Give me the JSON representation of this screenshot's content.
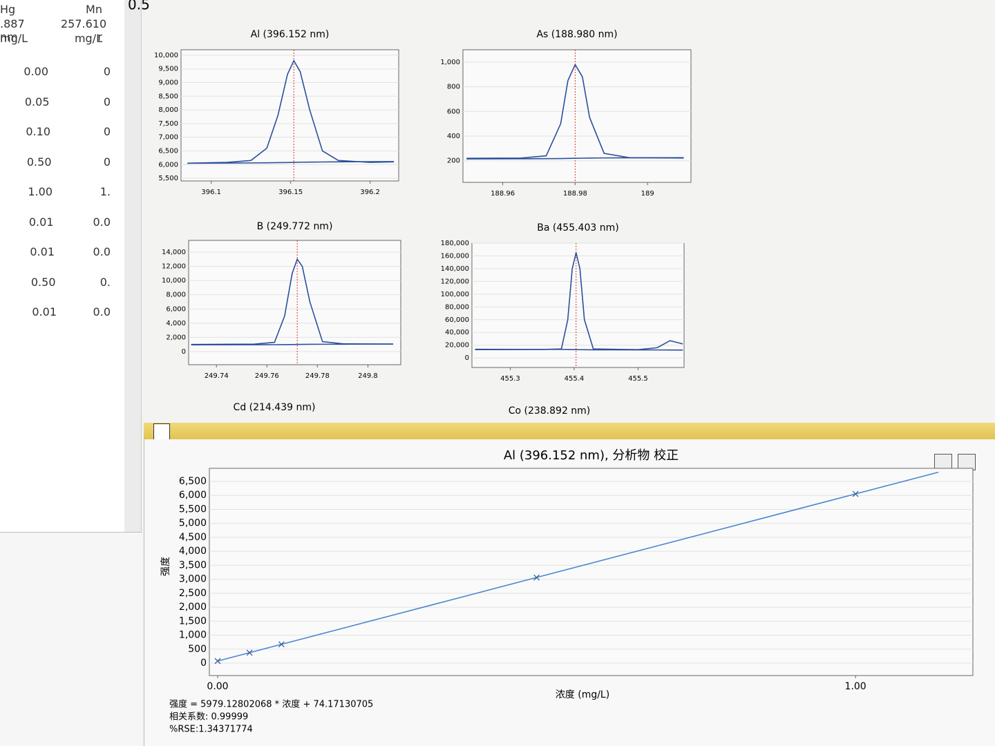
{
  "left_table": {
    "headers": [
      [
        "Hg",
        ".887 nm",
        "mg/L"
      ],
      [
        "Mn",
        "257.610 r",
        "mg/L"
      ]
    ],
    "rows": [
      [
        "0.00",
        "0"
      ],
      [
        "0.05",
        "0"
      ],
      [
        "0.10",
        "0"
      ],
      [
        "0.50",
        "0"
      ],
      [
        "1.00",
        "1."
      ],
      [
        "0.01",
        "0.0"
      ],
      [
        "0.01",
        "0.0"
      ],
      [
        "0.50",
        "0."
      ],
      [
        "0.01",
        "0.0"
      ]
    ]
  },
  "corner_label": "0.5",
  "pending_titles": [
    "Cd (214.439 nm)",
    "Co (238.892 nm)"
  ],
  "equation": [
    "强度 = 5979.12802068 * 浓度 + 74.17130705",
    "相关系数: 0.99999",
    "%RSE:1.34371774"
  ],
  "chart_data": [
    {
      "type": "line",
      "title": "Al (396.152 nm)",
      "xlim": [
        396.081,
        396.218
      ],
      "ylim": [
        5400,
        10200
      ],
      "xticks": [
        396.1,
        396.15,
        396.2
      ],
      "yticks": [
        {
          "value": 5500,
          "label": "5,500"
        },
        {
          "value": 6000,
          "label": "6,000"
        },
        {
          "value": 6500,
          "label": "6,500"
        },
        {
          "value": 7000,
          "label": "7,000"
        },
        {
          "value": 7500,
          "label": "7,500"
        },
        {
          "value": 8000,
          "label": "8,000"
        },
        {
          "value": 8500,
          "label": "8,500"
        },
        {
          "value": 9000,
          "label": "9,000"
        },
        {
          "value": 9500,
          "label": "9,500"
        },
        {
          "value": 10000,
          "label": "10,000"
        }
      ],
      "marker_x": 396.152,
      "x": [
        396.085,
        396.11,
        396.125,
        396.135,
        396.142,
        396.148,
        396.152,
        396.156,
        396.162,
        396.17,
        396.18,
        396.2,
        396.215
      ],
      "series": [
        {
          "color": "#2b4f9c",
          "values": [
            6050,
            6080,
            6150,
            6600,
            7800,
            9300,
            9800,
            9400,
            8000,
            6500,
            6150,
            6080,
            6100
          ]
        },
        {
          "color": "#2b4f9c",
          "values": [
            6050,
            6055,
            6060,
            6065,
            6070,
            6075,
            6080,
            6085,
            6090,
            6095,
            6100,
            6105,
            6110
          ]
        }
      ]
    },
    {
      "type": "line",
      "title": "As (188.980 nm)",
      "xlim": [
        188.949,
        189.012
      ],
      "ylim": [
        25,
        1100
      ],
      "xticks": [
        188.96,
        188.98,
        189
      ],
      "yticks": [
        200,
        400,
        600,
        800,
        {
          "value": 1000,
          "label": "1,000"
        }
      ],
      "marker_x": 188.98,
      "x": [
        188.95,
        188.965,
        188.972,
        188.976,
        188.978,
        188.98,
        188.982,
        188.984,
        188.988,
        188.995,
        189.01
      ],
      "series": [
        {
          "color": "#2b4f9c",
          "values": [
            220,
            222,
            240,
            500,
            850,
            980,
            880,
            550,
            260,
            225,
            222
          ]
        },
        {
          "color": "#2b4f9c",
          "values": [
            215,
            216,
            217,
            218,
            219,
            220,
            221,
            222,
            223,
            224,
            225
          ]
        }
      ]
    },
    {
      "type": "line",
      "title": "B (249.772 nm)",
      "xlim": [
        249.729,
        249.813
      ],
      "ylim": [
        -1850,
        15650
      ],
      "xticks": [
        249.74,
        249.76,
        249.78,
        249.8
      ],
      "yticks": [
        0,
        {
          "value": 2000,
          "label": "2,000"
        },
        {
          "value": 4000,
          "label": "4,000"
        },
        {
          "value": 6000,
          "label": "6,000"
        },
        {
          "value": 8000,
          "label": "8,000"
        },
        {
          "value": 10000,
          "label": "10,000"
        },
        {
          "value": 12000,
          "label": "12,000"
        },
        {
          "value": 14000,
          "label": "14,000"
        }
      ],
      "marker_x": 249.772,
      "x": [
        249.73,
        249.755,
        249.763,
        249.767,
        249.77,
        249.772,
        249.774,
        249.777,
        249.782,
        249.79,
        249.81
      ],
      "series": [
        {
          "color": "#2b4f9c",
          "values": [
            1000,
            1050,
            1300,
            5000,
            11000,
            13000,
            12000,
            7000,
            1400,
            1100,
            1050
          ]
        },
        {
          "color": "#2b4f9c",
          "values": [
            950,
            960,
            970,
            980,
            990,
            1000,
            1010,
            1020,
            1030,
            1040,
            1060
          ]
        }
      ]
    },
    {
      "type": "line",
      "title": "Ba (455.403 nm)",
      "xlim": [
        455.24,
        455.572
      ],
      "ylim": [
        -15000,
        180000
      ],
      "xticks": [
        455.3,
        455.4,
        455.5
      ],
      "yticks": [
        0,
        {
          "value": 20000,
          "label": "20,000"
        },
        {
          "value": 40000,
          "label": "40,000"
        },
        {
          "value": 60000,
          "label": "60,000"
        },
        {
          "value": 80000,
          "label": "80,000"
        },
        {
          "value": 100000,
          "label": "100,000"
        },
        {
          "value": 120000,
          "label": "120,000"
        },
        {
          "value": 140000,
          "label": "140,000"
        },
        {
          "value": 160000,
          "label": "160,000"
        },
        {
          "value": 180000,
          "label": "180,000"
        }
      ],
      "marker_x": 455.403,
      "x": [
        455.245,
        455.35,
        455.38,
        455.39,
        455.397,
        455.403,
        455.409,
        455.416,
        455.43,
        455.5,
        455.53,
        455.55,
        455.57
      ],
      "series": [
        {
          "color": "#2b4f9c",
          "values": [
            13000,
            13200,
            14000,
            60000,
            140000,
            165000,
            140000,
            60000,
            14000,
            13000,
            16000,
            27000,
            22000
          ]
        },
        {
          "color": "#2b4f9c",
          "values": [
            13500,
            13400,
            13300,
            13200,
            13100,
            13000,
            12900,
            12800,
            12700,
            12600,
            12500,
            12400,
            12300
          ]
        }
      ]
    },
    {
      "type": "line",
      "title": "Al (396.152 nm), 分析物 校正",
      "x_label": "浓度 (mg/L)",
      "y_label": "强度",
      "xlim": [
        -0.013,
        1.184
      ],
      "ylim": [
        -445,
        6970
      ],
      "xticks": [
        {
          "value": 0,
          "label": "0.00"
        },
        {
          "value": 1,
          "label": "1.00"
        }
      ],
      "yticks": [
        0,
        500,
        {
          "value": 1000,
          "label": "1,000"
        },
        {
          "value": 1500,
          "label": "1,500"
        },
        {
          "value": 2000,
          "label": "2,000"
        },
        {
          "value": 2500,
          "label": "2,500"
        },
        {
          "value": 3000,
          "label": "3,000"
        },
        {
          "value": 3500,
          "label": "3,500"
        },
        {
          "value": 4000,
          "label": "4,000"
        },
        {
          "value": 4500,
          "label": "4,500"
        },
        {
          "value": 5000,
          "label": "5,000"
        },
        {
          "value": 5500,
          "label": "5,500"
        },
        {
          "value": 6000,
          "label": "6,000"
        },
        {
          "value": 6500,
          "label": "6,500"
        }
      ],
      "series": [
        {
          "color": "#4a86d0",
          "x": [
            0,
            1.13
          ],
          "values": [
            74,
            6831
          ]
        },
        {
          "color": "#3a5f9a",
          "marker": "x",
          "x": [
            0,
            0.05,
            0.1,
            0.5,
            1
          ],
          "values": [
            74,
            373,
            672,
            3064,
            6053
          ]
        }
      ]
    }
  ]
}
